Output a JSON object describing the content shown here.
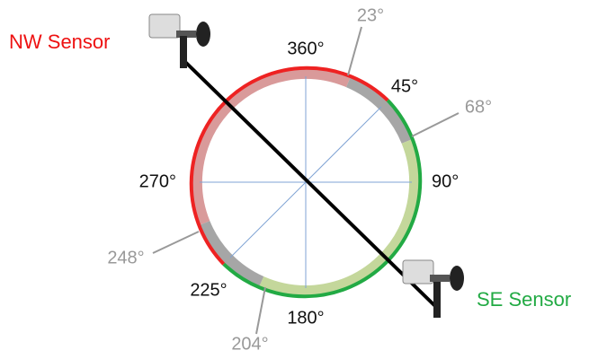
{
  "sensors": {
    "nw": "NW Sensor",
    "se": "SE Sensor"
  },
  "compass_labels": {
    "north": "360°",
    "northeast": "45°",
    "east": "90°",
    "south": "180°",
    "southwest": "225°",
    "west": "270°"
  },
  "boundary_labels": {
    "a": "23°",
    "b": "68°",
    "c": "204°",
    "d": "248°"
  }
}
